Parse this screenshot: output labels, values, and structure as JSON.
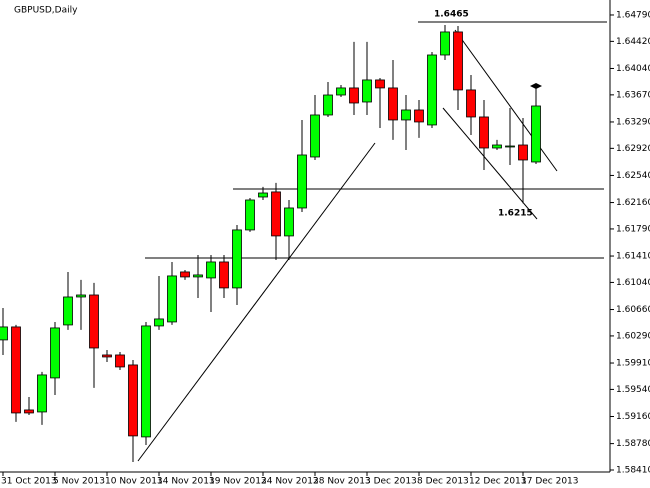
{
  "chart_data": {
    "type": "candlestick",
    "title": "GBPUSD,Daily",
    "categories": [
      "31 Oct 2013",
      null,
      null,
      null,
      "5 Nov 2013",
      null,
      null,
      null,
      "10 Nov 2013",
      null,
      null,
      null,
      "14 Nov 2013",
      null,
      null,
      null,
      "19 Nov 2013",
      null,
      null,
      null,
      "24 Nov 2013",
      null,
      null,
      null,
      "28 Nov 2013",
      null,
      null,
      null,
      "3 Dec 2013",
      null,
      null,
      null,
      "8 Dec 2013",
      null,
      null,
      null,
      "12 Dec 2013",
      null,
      null,
      null,
      "17 Dec 2013",
      null
    ],
    "open": [
      1.60234,
      1.60416,
      1.59252,
      1.59224,
      1.59701,
      1.60444,
      1.60836,
      1.60864,
      1.60023,
      1.60023,
      1.59883,
      1.58874,
      1.6043,
      1.60486,
      1.61187,
      1.61117,
      1.61103,
      1.61327,
      1.60963,
      1.61776,
      1.62238,
      1.62309,
      1.61692,
      1.62084,
      1.62799,
      1.63388,
      1.63668,
      1.63767,
      1.6357,
      1.63879,
      1.63767,
      1.63318,
      1.63458,
      1.63248,
      1.64229,
      1.64552,
      1.63739,
      1.6336,
      1.62925,
      1.62939,
      1.62967,
      1.62729
    ],
    "high": [
      1.60682,
      1.60444,
      1.59434,
      1.59785,
      1.60486,
      1.61187,
      1.61075,
      1.61033,
      1.60093,
      1.60065,
      1.59953,
      1.60486,
      1.61131,
      1.61327,
      1.61215,
      1.61425,
      1.61425,
      1.61425,
      1.61846,
      1.62224,
      1.62379,
      1.62435,
      1.62196,
      1.63318,
      1.63668,
      1.63851,
      1.63809,
      1.64412,
      1.64412,
      1.63907,
      1.64159,
      1.63668,
      1.63598,
      1.64271,
      1.6465,
      1.64636,
      1.63949,
      1.63598,
      1.63038,
      1.63486,
      1.63346,
      1.63823
    ],
    "low": [
      1.60023,
      1.59084,
      1.59182,
      1.59042,
      1.59462,
      1.60374,
      1.60374,
      1.59561,
      1.59925,
      1.59813,
      1.58523,
      1.58761,
      1.60374,
      1.60444,
      1.61075,
      1.60822,
      1.60626,
      1.60822,
      1.60724,
      1.61748,
      1.62196,
      1.61355,
      1.61355,
      1.62028,
      1.62757,
      1.6336,
      1.6364,
      1.63388,
      1.63388,
      1.63206,
      1.63038,
      1.62897,
      1.63066,
      1.63206,
      1.64159,
      1.63458,
      1.63108,
      1.62617,
      1.62897,
      1.62687,
      1.6215,
      1.62701
    ],
    "close": [
      1.60416,
      1.5921,
      1.5921,
      1.59743,
      1.60402,
      1.60836,
      1.60864,
      1.60121,
      1.59995,
      1.59855,
      1.58888,
      1.6043,
      1.60528,
      1.61131,
      1.61117,
      1.61145,
      1.61327,
      1.60963,
      1.61776,
      1.62196,
      1.62294,
      1.61692,
      1.62084,
      1.62827,
      1.63388,
      1.63668,
      1.63767,
      1.63556,
      1.63879,
      1.63767,
      1.63318,
      1.63458,
      1.6329,
      1.64229,
      1.64552,
      1.63739,
      1.6336,
      1.62925,
      1.62967,
      1.62953,
      1.62757,
      1.63514
    ],
    "up_color": "#00ff00",
    "down_color": "#ff0000",
    "ylim": [
      1.58382,
      1.65
    ],
    "yticks": [
      {
        "value": 1.5841,
        "label": "1.58410"
      },
      {
        "value": 1.5878,
        "label": "1.58780"
      },
      {
        "value": 1.5916,
        "label": "1.59160"
      },
      {
        "value": 1.5954,
        "label": "1.59540"
      },
      {
        "value": 1.5991,
        "label": "1.59910"
      },
      {
        "value": 1.6029,
        "label": "1.60290"
      },
      {
        "value": 1.6066,
        "label": "1.60660"
      },
      {
        "value": 1.6104,
        "label": "1.61040"
      },
      {
        "value": 1.6141,
        "label": "1.61410"
      },
      {
        "value": 1.6179,
        "label": "1.61790"
      },
      {
        "value": 1.6216,
        "label": "1.62160"
      },
      {
        "value": 1.6254,
        "label": "1.62540"
      },
      {
        "value": 1.6292,
        "label": "1.62920"
      },
      {
        "value": 1.6329,
        "label": "1.63290"
      },
      {
        "value": 1.6367,
        "label": "1.63670"
      },
      {
        "value": 1.6404,
        "label": "1.64040"
      },
      {
        "value": 1.6442,
        "label": "1.64420"
      },
      {
        "value": 1.6479,
        "label": "1.64790"
      }
    ],
    "annotations": [
      "1.6465",
      "1.6215"
    ]
  }
}
